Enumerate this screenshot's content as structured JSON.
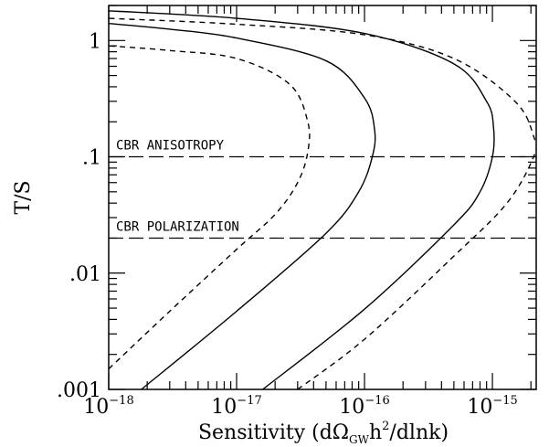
{
  "chart_data": {
    "type": "line",
    "xlabel": {
      "prefix": "Sensitivity (d",
      "omega": "Ω",
      "omega_sub": "GW",
      "mid": "h",
      "sup": "2",
      "suffix": "/dlnk)"
    },
    "ylabel": "T/S",
    "xscale": "log",
    "yscale": "log",
    "xlim": [
      1e-18,
      2.2e-15
    ],
    "ylim": [
      0.001,
      2.0
    ],
    "x_ticks": [
      {
        "base": "10",
        "exp": "−18"
      },
      {
        "base": "10",
        "exp": "−17"
      },
      {
        "base": "10",
        "exp": "−16"
      },
      {
        "base": "10",
        "exp": "−15"
      }
    ],
    "x_tick_values": [
      1e-18,
      1e-17,
      1e-16,
      1e-15
    ],
    "y_ticks": [
      "1",
      ".1",
      ".01",
      ".001"
    ],
    "y_tick_values": [
      1,
      0.1,
      0.01,
      0.001
    ],
    "annotations": [
      {
        "text": "CBR ANISOTROPY",
        "y": 0.1
      },
      {
        "text": "CBR POLARIZATION",
        "y": 0.02
      }
    ],
    "hlines": [
      {
        "y": 0.1,
        "style": "long-dash"
      },
      {
        "y": 0.02,
        "style": "long-dash"
      }
    ],
    "series": [
      {
        "style": "short-dash",
        "points": [
          [
            1e-18,
            0.0015
          ],
          [
            3e-18,
            0.0047
          ],
          [
            1e-17,
            0.016
          ],
          [
            2e-17,
            0.032
          ],
          [
            3e-17,
            0.06
          ],
          [
            3.6e-17,
            0.11
          ],
          [
            3.6e-17,
            0.2
          ],
          [
            2.6e-17,
            0.42
          ],
          [
            1e-17,
            0.7
          ],
          [
            3e-18,
            0.82
          ],
          [
            1e-18,
            0.9
          ]
        ]
      },
      {
        "style": "solid",
        "points": [
          [
            1.8e-18,
            0.001
          ],
          [
            1e-17,
            0.0047
          ],
          [
            5e-17,
            0.022
          ],
          [
            9e-17,
            0.05
          ],
          [
            1.15e-16,
            0.1
          ],
          [
            1.2e-16,
            0.17
          ],
          [
            1e-16,
            0.32
          ],
          [
            5e-17,
            0.67
          ],
          [
            1e-17,
            1.05
          ],
          [
            3e-18,
            1.25
          ],
          [
            1e-18,
            1.4
          ]
        ]
      },
      {
        "style": "solid",
        "points": [
          [
            1.6e-17,
            0.001
          ],
          [
            1e-16,
            0.0049
          ],
          [
            5e-16,
            0.026
          ],
          [
            8e-16,
            0.05
          ],
          [
            1e-15,
            0.1
          ],
          [
            1.02e-15,
            0.18
          ],
          [
            9e-16,
            0.3
          ],
          [
            5e-16,
            0.63
          ],
          [
            1e-16,
            1.15
          ],
          [
            1e-17,
            1.55
          ],
          [
            1e-18,
            1.8
          ]
        ]
      },
      {
        "style": "short-dash",
        "points": [
          [
            3e-17,
            0.001
          ],
          [
            1e-16,
            0.0027
          ],
          [
            5e-16,
            0.014
          ],
          [
            1.3e-15,
            0.04
          ],
          [
            2.1e-15,
            0.1
          ],
          [
            2.1e-15,
            0.15
          ],
          [
            1.5e-15,
            0.3
          ],
          [
            5e-16,
            0.7
          ],
          [
            1e-16,
            1.12
          ],
          [
            1e-17,
            1.38
          ],
          [
            1e-18,
            1.55
          ]
        ]
      }
    ]
  }
}
